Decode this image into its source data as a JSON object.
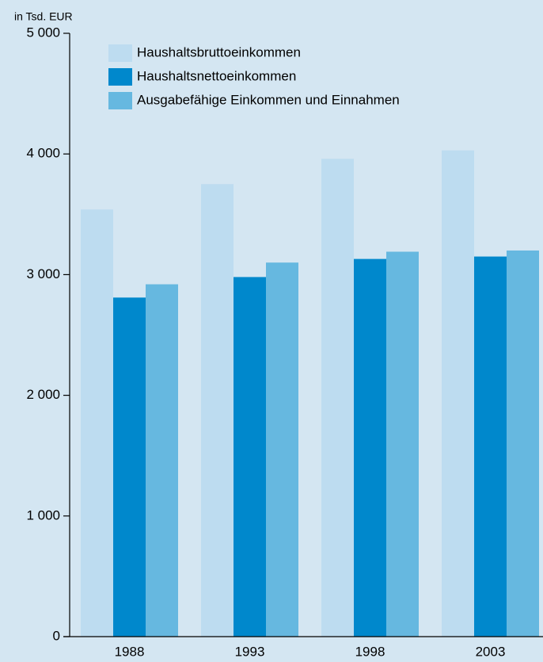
{
  "chart_data": {
    "type": "bar",
    "y_label": "in Tsd. EUR",
    "categories": [
      "1988",
      "1993",
      "1998",
      "2003"
    ],
    "series": [
      {
        "name": "Haushaltsbruttoeinkommen",
        "color": "#bddcf0",
        "values": [
          3540,
          3750,
          3960,
          4030
        ]
      },
      {
        "name": "Haushaltsnettoeinkommen",
        "color": "#0088cc",
        "values": [
          2810,
          2980,
          3130,
          3150
        ]
      },
      {
        "name": "Ausgabefähige Einkommen und Einnahmen",
        "color": "#66b8e0",
        "values": [
          2920,
          3100,
          3190,
          3200
        ]
      }
    ],
    "ylim": [
      0,
      5000
    ],
    "yticks": [
      0,
      {
        "value": 1000,
        "label": "1 000"
      },
      {
        "value": 2000,
        "label": "2 000"
      },
      {
        "value": 3000,
        "label": "3 000"
      },
      {
        "value": 4000,
        "label": "4 000"
      },
      {
        "value": 5000,
        "label": "5 000"
      }
    ],
    "legend": "top-left"
  }
}
